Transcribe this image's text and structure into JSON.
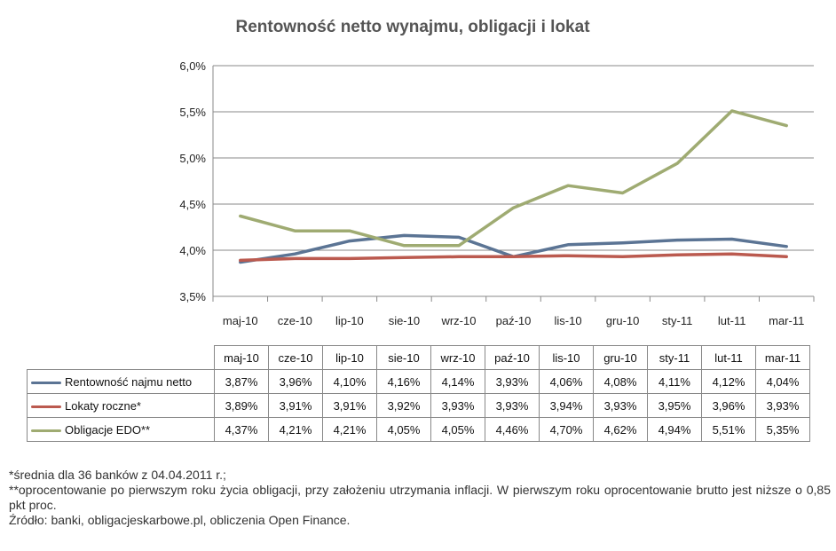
{
  "chart_data": {
    "type": "line",
    "title": "Rentowność netto wynajmu, obligacji i lokat",
    "categories": [
      "maj-10",
      "cze-10",
      "lip-10",
      "sie-10",
      "wrz-10",
      "paź-10",
      "lis-10",
      "gru-10",
      "sty-11",
      "lut-11",
      "mar-11"
    ],
    "ylim": [
      3.5,
      6.0
    ],
    "yticks": [
      "3,5%",
      "4,0%",
      "4,5%",
      "5,0%",
      "5,5%",
      "6,0%"
    ],
    "ytick_values": [
      3.5,
      4.0,
      4.5,
      5.0,
      5.5,
      6.0
    ],
    "grid": true,
    "legend": "data-table",
    "series": [
      {
        "name": "Rentowność najmu netto",
        "color": "#5b7494",
        "values": [
          3.87,
          3.96,
          4.1,
          4.16,
          4.14,
          3.93,
          4.06,
          4.08,
          4.11,
          4.12,
          4.04
        ],
        "labels": [
          "3,87%",
          "3,96%",
          "4,10%",
          "4,16%",
          "4,14%",
          "3,93%",
          "4,06%",
          "4,08%",
          "4,11%",
          "4,12%",
          "4,04%"
        ]
      },
      {
        "name": "Lokaty roczne*",
        "color": "#bb5a4f",
        "values": [
          3.89,
          3.91,
          3.91,
          3.92,
          3.93,
          3.93,
          3.94,
          3.93,
          3.95,
          3.96,
          3.93
        ],
        "labels": [
          "3,89%",
          "3,91%",
          "3,91%",
          "3,92%",
          "3,93%",
          "3,93%",
          "3,94%",
          "3,93%",
          "3,95%",
          "3,96%",
          "3,93%"
        ]
      },
      {
        "name": "Obligacje EDO**",
        "color": "#9fab72",
        "values": [
          4.37,
          4.21,
          4.21,
          4.05,
          4.05,
          4.46,
          4.7,
          4.62,
          4.94,
          5.51,
          5.35
        ],
        "labels": [
          "4,37%",
          "4,21%",
          "4,21%",
          "4,05%",
          "4,05%",
          "4,46%",
          "4,70%",
          "4,62%",
          "4,94%",
          "5,51%",
          "5,35%"
        ]
      }
    ]
  },
  "footnotes": {
    "line1": "*średnia dla 36 banków z 04.04.2011 r.;",
    "line2": "**oprocentowanie po pierwszym roku życia obligacji, przy założeniu utrzymania inflacji. W pierwszym roku oprocentowanie brutto jest niższe o 0,85 pkt proc.",
    "line3": "Źródło: banki, obligacjeskarbowe.pl, obliczenia Open Finance."
  }
}
